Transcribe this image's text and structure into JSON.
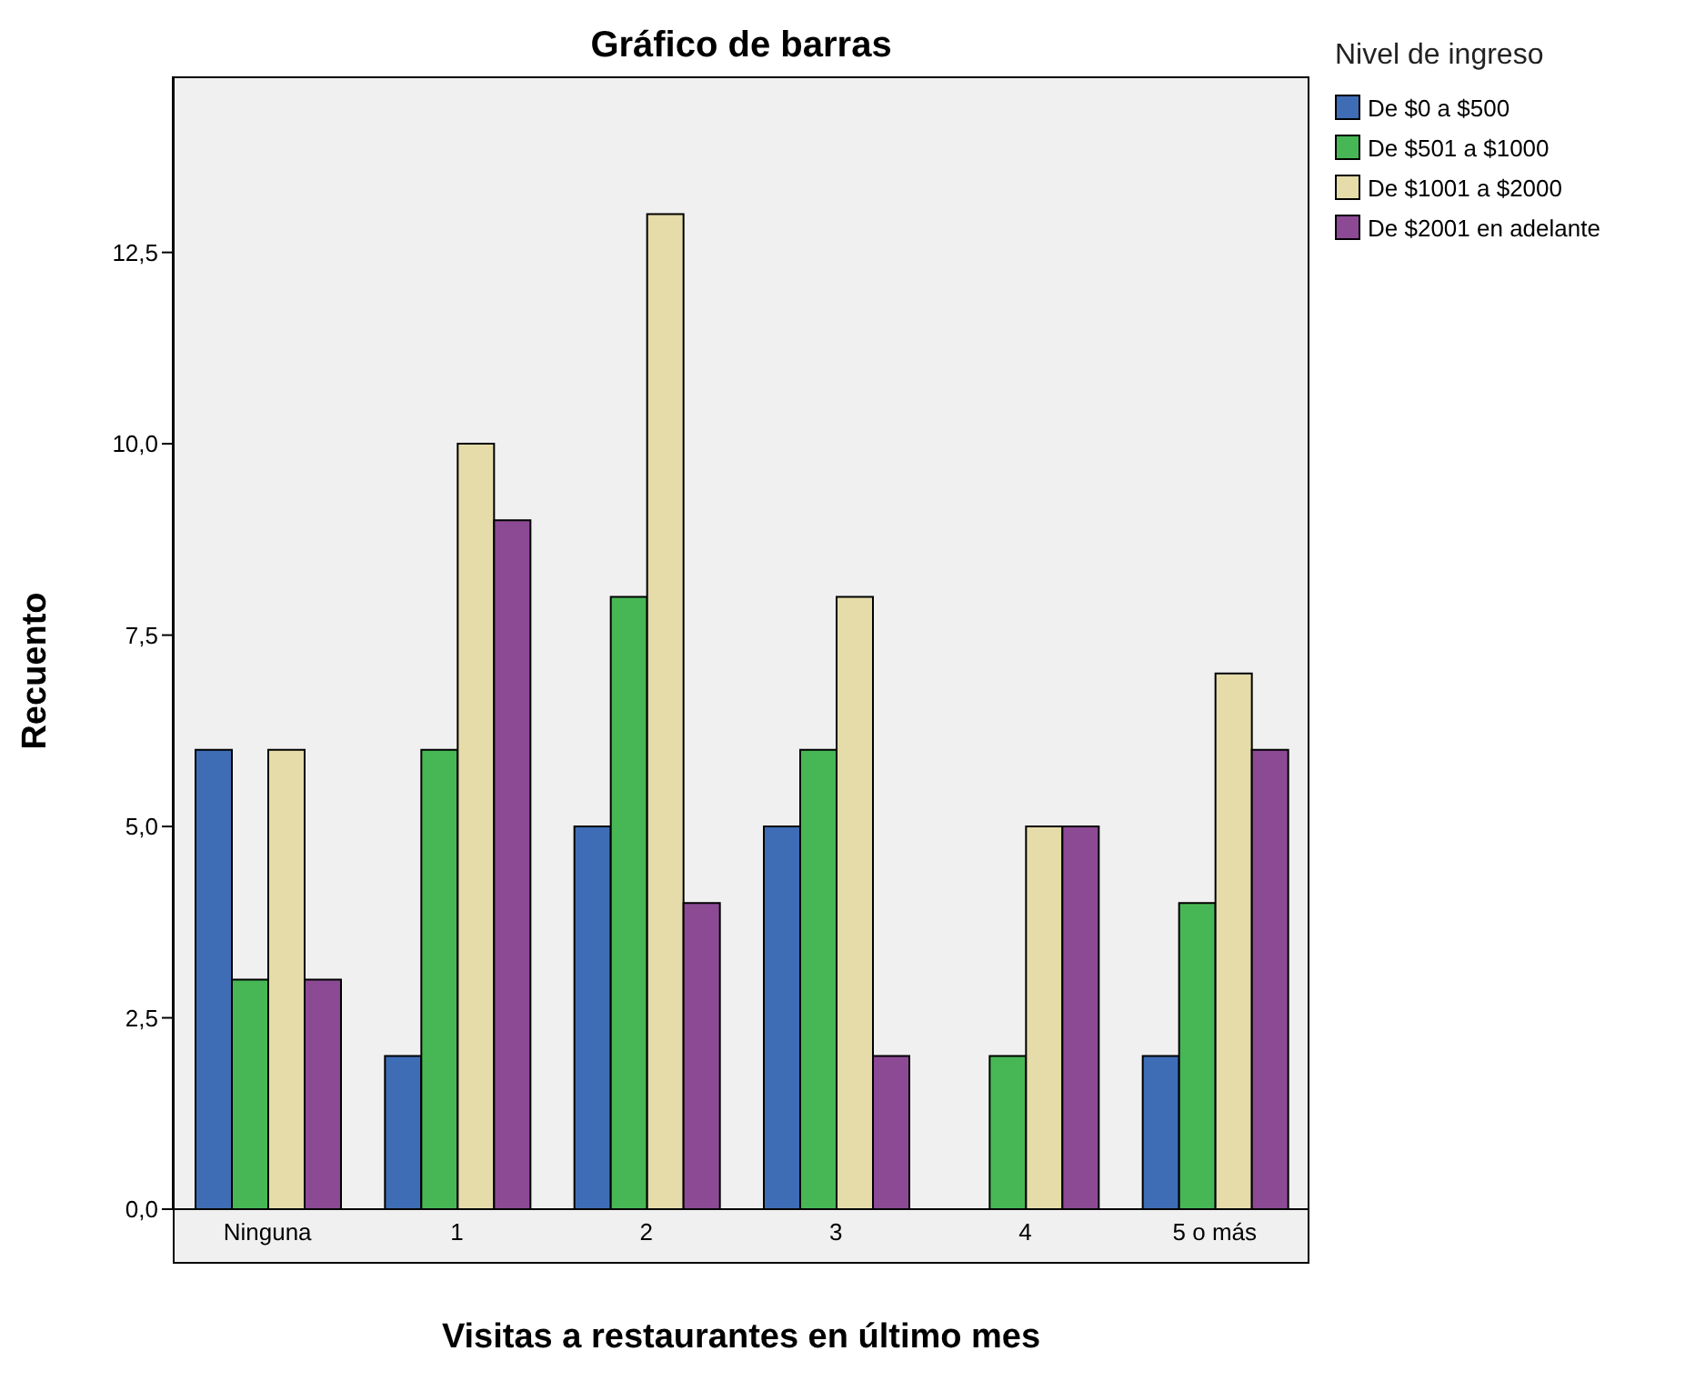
{
  "chart_data": {
    "type": "bar",
    "title": "Gráfico de barras",
    "xlabel": "Visitas a restaurantes en último mes",
    "ylabel": "Recuento",
    "legend_title": "Nivel de ingreso",
    "categories": [
      "Ninguna",
      "1",
      "2",
      "3",
      "4",
      "5 o más"
    ],
    "series": [
      {
        "name": "De $0 a $500",
        "color": "#3e6db5",
        "values": [
          6,
          2,
          5,
          5,
          0,
          2
        ]
      },
      {
        "name": "De $501 a $1000",
        "color": "#47b755",
        "values": [
          3,
          6,
          8,
          6,
          2,
          4
        ]
      },
      {
        "name": "De $1001 a $2000",
        "color": "#e5dcaa",
        "values": [
          6,
          10,
          13,
          8,
          5,
          7
        ]
      },
      {
        "name": "De $2001 en adelante",
        "color": "#8c4a95",
        "values": [
          3,
          9,
          4,
          2,
          5,
          6
        ]
      }
    ],
    "ylim": [
      0,
      14.8
    ],
    "yticks": [
      {
        "value": 0,
        "label": "0,0"
      },
      {
        "value": 2.5,
        "label": "2,5"
      },
      {
        "value": 5,
        "label": "5,0"
      },
      {
        "value": 7.5,
        "label": "7,5"
      },
      {
        "value": 10,
        "label": "10,0"
      },
      {
        "value": 12.5,
        "label": "12,5"
      }
    ],
    "legend": "top right",
    "grid": false
  }
}
